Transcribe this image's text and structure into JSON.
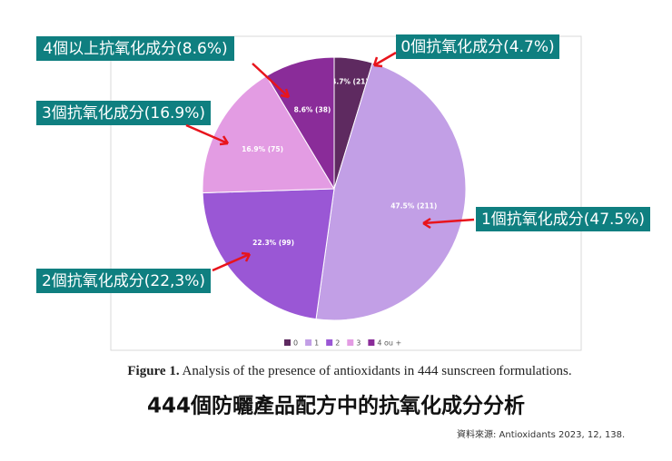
{
  "chart_data": {
    "type": "pie",
    "categories": [
      "0",
      "1",
      "2",
      "3",
      "4 ou +"
    ],
    "values": [
      4.7,
      47.5,
      22.3,
      16.9,
      8.6
    ],
    "value_labels": [
      "4.7% (21)",
      "47.5% (211)",
      "22.3% (99)",
      "16.9% (75)",
      "8.6% (38)"
    ],
    "colors": [
      "#5e2a60",
      "#c29fe6",
      "#9a57d5",
      "#e39ce3",
      "#8a2c99"
    ],
    "legend": "bottom"
  },
  "annotations": [
    "0個抗氧化成分(4.7%)",
    "1個抗氧化成分(47.5%)",
    "2個抗氧化成分(22,3%)",
    "3個抗氧化成分(16.9%)",
    "4個以上抗氧化成分(8.6%)"
  ],
  "caption": {
    "label": "Figure 1.",
    "text": "Analysis of the presence of antioxidants in 444 sunscreen formulations."
  },
  "title": "444個防曬產品配方中的抗氧化成分分析",
  "source": "資料來源: Antioxidants 2023, 12, 138."
}
